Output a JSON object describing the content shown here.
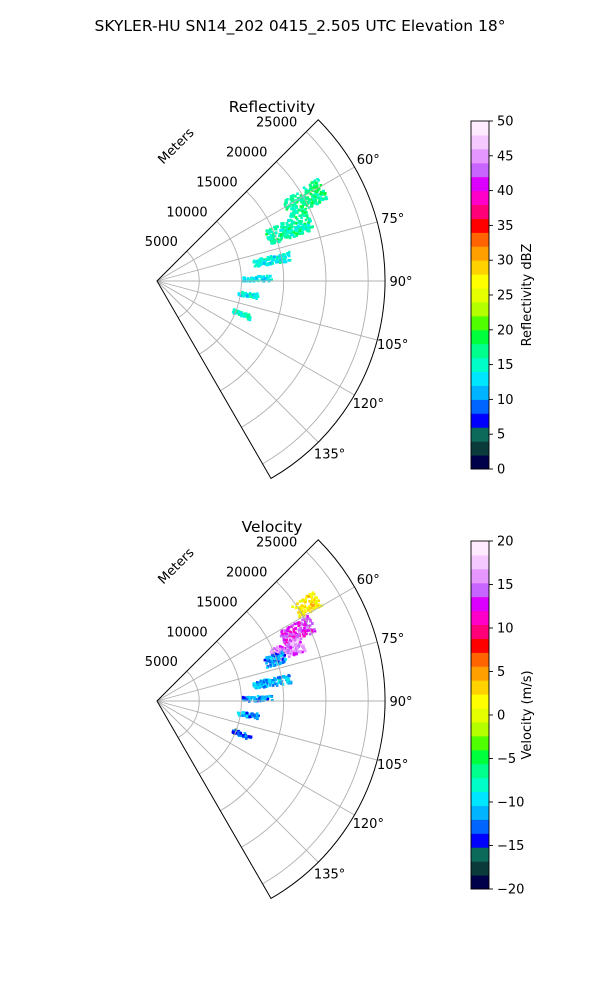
{
  "figure": {
    "title": "SKYLER-HU  SN14_202  0415_2.505 UTC Elevation 18°"
  },
  "chart_data": [
    {
      "type": "heatmap",
      "projection": "polar-sector",
      "title": "Reflectivity",
      "range_label": "Meters",
      "range_ticks": [
        5000,
        10000,
        15000,
        20000,
        25000
      ],
      "range_tick_labels": [
        "5000",
        "10000",
        "15000",
        "20000",
        "25000"
      ],
      "range_max": 27000,
      "azimuth_range": [
        45,
        150
      ],
      "azimuth_ticks": [
        60,
        75,
        90,
        105,
        120,
        135
      ],
      "azimuth_tick_labels": [
        "60°",
        "75°",
        "90°",
        "105°",
        "120°",
        "135°"
      ],
      "grid": true,
      "colorbar": {
        "label": "Reflectivity dBZ",
        "min": 0,
        "max": 50,
        "ticks": [
          0,
          5,
          10,
          15,
          20,
          25,
          30,
          35,
          40,
          45,
          50
        ],
        "tick_labels": [
          "0",
          "5",
          "10",
          "15",
          "20",
          "25",
          "30",
          "35",
          "40",
          "45",
          "50"
        ]
      },
      "echo_regions": [
        {
          "az_center": 60.5,
          "az_width": 7,
          "r_min": 17500,
          "r_max": 22500,
          "value": 17
        },
        {
          "az_center": 68,
          "az_width": 7,
          "r_min": 14000,
          "r_max": 19500,
          "value": 16
        },
        {
          "az_center": 79,
          "az_width": 4,
          "r_min": 11500,
          "r_max": 16000,
          "value": 14
        },
        {
          "az_center": 88,
          "az_width": 3,
          "r_min": 10000,
          "r_max": 13500,
          "value": 13
        },
        {
          "az_center": 98,
          "az_width": 3,
          "r_min": 9500,
          "r_max": 12000,
          "value": 14
        },
        {
          "az_center": 111,
          "az_width": 3,
          "r_min": 9500,
          "r_max": 11800,
          "value": 15
        }
      ]
    },
    {
      "type": "heatmap",
      "projection": "polar-sector",
      "title": "Velocity",
      "range_label": "Meters",
      "range_ticks": [
        5000,
        10000,
        15000,
        20000,
        25000
      ],
      "range_tick_labels": [
        "5000",
        "10000",
        "15000",
        "20000",
        "25000"
      ],
      "range_max": 27000,
      "azimuth_range": [
        45,
        150
      ],
      "azimuth_ticks": [
        60,
        75,
        90,
        105,
        120,
        135
      ],
      "azimuth_tick_labels": [
        "60°",
        "75°",
        "90°",
        "105°",
        "120°",
        "135°"
      ],
      "grid": true,
      "colorbar": {
        "label": "Velocity (m/s)",
        "min": -20,
        "max": 20,
        "ticks": [
          -20,
          -15,
          -10,
          -5,
          0,
          5,
          10,
          15,
          20
        ],
        "tick_labels": [
          "−20",
          "−15",
          "−10",
          "−5",
          "0",
          "5",
          "10",
          "15",
          "20"
        ]
      },
      "echo_regions": [
        {
          "az_center": 57,
          "az_width": 5,
          "r_min": 19500,
          "r_max": 22500,
          "value": 2
        },
        {
          "az_center": 63,
          "az_width": 6,
          "r_min": 16500,
          "r_max": 20500,
          "value": 13
        },
        {
          "az_center": 68,
          "az_width": 6,
          "r_min": 14500,
          "r_max": 18500,
          "value": 15
        },
        {
          "az_center": 70,
          "az_width": 5,
          "r_min": 13500,
          "r_max": 16000,
          "value": -12
        },
        {
          "az_center": 80,
          "az_width": 4,
          "r_min": 11500,
          "r_max": 16000,
          "value": -11
        },
        {
          "az_center": 88,
          "az_width": 3,
          "r_min": 10000,
          "r_max": 13500,
          "value": -12
        },
        {
          "az_center": 98,
          "az_width": 3,
          "r_min": 9500,
          "r_max": 12000,
          "value": -12
        },
        {
          "az_center": 111,
          "az_width": 3,
          "r_min": 9500,
          "r_max": 11800,
          "value": -13
        }
      ]
    }
  ],
  "colormaps": {
    "reflectivity": [
      "#00004a",
      "#0a3a3a",
      "#0c6a5a",
      "#0000ff",
      "#0064ff",
      "#00b4ff",
      "#00e6ff",
      "#00ffc8",
      "#00ff8c",
      "#00ff3c",
      "#50ff00",
      "#b4ff00",
      "#e6ff00",
      "#ffff00",
      "#ffd200",
      "#ffa000",
      "#ff6400",
      "#ff0000",
      "#ff0078",
      "#ff00c8",
      "#dc00ff",
      "#c864ff",
      "#e696ff",
      "#f5c8ff",
      "#ffebff"
    ],
    "velocity": [
      "#00004a",
      "#0a3a3a",
      "#0c6a5a",
      "#0000ff",
      "#0064ff",
      "#00b4ff",
      "#00e6ff",
      "#00ffc8",
      "#00ff8c",
      "#00ff3c",
      "#50ff00",
      "#b4ff00",
      "#e6ff00",
      "#ffff00",
      "#ffd200",
      "#ffa000",
      "#ff6400",
      "#ff0000",
      "#ff0078",
      "#ff00c8",
      "#dc00ff",
      "#c864ff",
      "#e696ff",
      "#f5c8ff",
      "#ffebff"
    ]
  }
}
